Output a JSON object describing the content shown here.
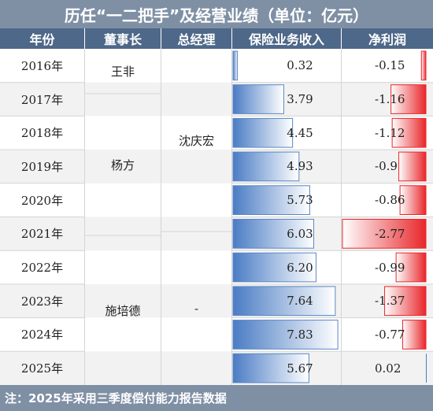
{
  "title": "历任“一二把手”及经营业绩（单位：亿元）",
  "headers": [
    "年份",
    "董事长",
    "总经理",
    "保险业务收入",
    "净利润"
  ],
  "chairmen": [
    "王非",
    "杨方",
    "施培德"
  ],
  "general_managers": [
    "沈庆宏",
    "-"
  ],
  "footnote": "注：2025年采用三季度偿付能力报告数据",
  "colors": {
    "title_bg": "#7f90a5",
    "header_bg": "#4e6889",
    "revenue_bar": "#4a7cc4",
    "profit_bar": "#e8262a",
    "row_alt": "#f2f2f2"
  },
  "chart_data": {
    "type": "table",
    "title": "历任“一二把手”及经营业绩（单位：亿元）",
    "years": [
      "2016年",
      "2017年",
      "2018年",
      "2019年",
      "2020年",
      "2021年",
      "2022年",
      "2023年",
      "2024年",
      "2025年"
    ],
    "series": [
      {
        "name": "保险业务收入",
        "values": [
          0.32,
          3.79,
          4.45,
          4.93,
          5.73,
          6.03,
          6.2,
          7.64,
          7.83,
          5.67
        ],
        "labels": [
          "0.32",
          "3.79",
          "4.45",
          "4.93",
          "5.73",
          "6.03",
          "6.20",
          "7.64",
          "7.83",
          "5.67"
        ]
      },
      {
        "name": "净利润",
        "values": [
          -0.15,
          -1.16,
          -1.12,
          -0.9,
          -0.86,
          -2.77,
          -0.99,
          -1.37,
          -0.77,
          0.02
        ],
        "labels": [
          "-0.15",
          "-1.16",
          "-1.12",
          "-0.9",
          "-0.86",
          "-2.77",
          "-0.99",
          "-1.37",
          "-0.77",
          "0.02"
        ]
      }
    ]
  }
}
